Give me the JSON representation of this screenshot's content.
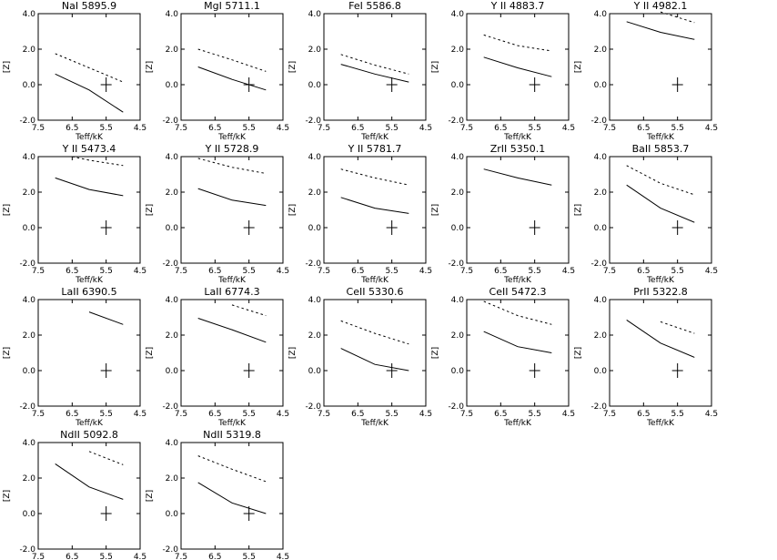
{
  "chart_data": [
    {
      "type": "line",
      "title": "NaI 5895.9",
      "xlabel": "Teff/kK",
      "ylabel": "[Z]",
      "x_ticks": [
        "7.5",
        "6.5",
        "5.5",
        "4.5"
      ],
      "y_ticks": [
        "4.0",
        "2.0",
        "0.0",
        "-2.0"
      ],
      "xlim": [
        7.5,
        4.5
      ],
      "ylim": [
        -2.0,
        4.0
      ],
      "series": [
        {
          "style": "solid",
          "x": [
            7.0,
            6.0,
            5.0
          ],
          "y": [
            0.6,
            -0.3,
            -1.55
          ]
        },
        {
          "style": "dotted",
          "x": [
            7.0,
            6.0,
            5.0
          ],
          "y": [
            1.75,
            0.95,
            0.15
          ]
        }
      ],
      "point": {
        "x": 5.5,
        "y": 0.0
      }
    },
    {
      "type": "line",
      "title": "MgI 5711.1",
      "xlabel": "Teff/kK",
      "ylabel": "[Z]",
      "x_ticks": [
        "7.5",
        "6.5",
        "5.5",
        "4.5"
      ],
      "y_ticks": [
        "4.0",
        "2.0",
        "0.0",
        "-2.0"
      ],
      "xlim": [
        7.5,
        4.5
      ],
      "ylim": [
        -2.0,
        4.0
      ],
      "series": [
        {
          "style": "solid",
          "x": [
            7.0,
            6.0,
            5.0
          ],
          "y": [
            1.0,
            0.3,
            -0.3
          ]
        },
        {
          "style": "dotted",
          "x": [
            7.0,
            6.0,
            5.0
          ],
          "y": [
            2.0,
            1.4,
            0.75
          ]
        }
      ],
      "point": {
        "x": 5.5,
        "y": 0.0
      }
    },
    {
      "type": "line",
      "title": "FeI 5586.8",
      "xlabel": "Teff/kK",
      "ylabel": "[Z]",
      "x_ticks": [
        "7.5",
        "6.5",
        "5.5",
        "4.5"
      ],
      "y_ticks": [
        "4.0",
        "2.0",
        "0.0",
        "-2.0"
      ],
      "xlim": [
        7.5,
        4.5
      ],
      "ylim": [
        -2.0,
        4.0
      ],
      "series": [
        {
          "style": "solid",
          "x": [
            7.0,
            6.0,
            5.0
          ],
          "y": [
            1.15,
            0.6,
            0.15
          ]
        },
        {
          "style": "dotted",
          "x": [
            7.0,
            6.0,
            5.0
          ],
          "y": [
            1.7,
            1.1,
            0.6
          ]
        }
      ],
      "point": {
        "x": 5.5,
        "y": 0.0
      }
    },
    {
      "type": "line",
      "title": "Y II 4883.7",
      "xlabel": "Teff/kK",
      "ylabel": "[Z]",
      "x_ticks": [
        "7.5",
        "6.5",
        "5.5",
        "4.5"
      ],
      "y_ticks": [
        "4.0",
        "2.0",
        "0.0",
        "-2.0"
      ],
      "xlim": [
        7.5,
        4.5
      ],
      "ylim": [
        -2.0,
        4.0
      ],
      "series": [
        {
          "style": "solid",
          "x": [
            7.0,
            6.0,
            5.0
          ],
          "y": [
            1.55,
            0.95,
            0.45
          ]
        },
        {
          "style": "dotted",
          "x": [
            7.0,
            6.0,
            5.0
          ],
          "y": [
            2.8,
            2.2,
            1.9
          ]
        }
      ],
      "point": {
        "x": 5.5,
        "y": 0.0
      }
    },
    {
      "type": "line",
      "title": "Y II 4982.1",
      "xlabel": "Teff/kK",
      "ylabel": "[Z]",
      "x_ticks": [
        "7.5",
        "6.5",
        "5.5",
        "4.5"
      ],
      "y_ticks": [
        "4.0",
        "2.0",
        "0.0",
        "-2.0"
      ],
      "xlim": [
        7.5,
        4.5
      ],
      "ylim": [
        -2.0,
        4.0
      ],
      "series": [
        {
          "style": "solid",
          "x": [
            7.0,
            6.0,
            5.0
          ],
          "y": [
            3.55,
            2.95,
            2.55
          ]
        },
        {
          "style": "dotted",
          "x": [
            6.0,
            5.0
          ],
          "y": [
            4.1,
            3.5
          ]
        }
      ],
      "point": {
        "x": 5.5,
        "y": 0.0
      }
    },
    {
      "type": "line",
      "title": "Y II 5473.4",
      "xlabel": "Teff/kK",
      "ylabel": "[Z]",
      "x_ticks": [
        "7.5",
        "6.5",
        "5.5",
        "4.5"
      ],
      "y_ticks": [
        "4.0",
        "2.0",
        "0.0",
        "-2.0"
      ],
      "xlim": [
        7.5,
        4.5
      ],
      "ylim": [
        -2.0,
        4.0
      ],
      "series": [
        {
          "style": "solid",
          "x": [
            7.0,
            6.0,
            5.0
          ],
          "y": [
            2.8,
            2.15,
            1.8
          ]
        },
        {
          "style": "dotted",
          "x": [
            6.5,
            6.0,
            5.0
          ],
          "y": [
            4.0,
            3.8,
            3.5
          ]
        }
      ],
      "point": {
        "x": 5.5,
        "y": 0.0
      }
    },
    {
      "type": "line",
      "title": "Y II 5728.9",
      "xlabel": "Teff/kK",
      "ylabel": "[Z]",
      "x_ticks": [
        "7.5",
        "6.5",
        "5.5",
        "4.5"
      ],
      "y_ticks": [
        "4.0",
        "2.0",
        "0.0",
        "-2.0"
      ],
      "xlim": [
        7.5,
        4.5
      ],
      "ylim": [
        -2.0,
        4.0
      ],
      "series": [
        {
          "style": "solid",
          "x": [
            7.0,
            6.0,
            5.0
          ],
          "y": [
            2.2,
            1.55,
            1.25
          ]
        },
        {
          "style": "dotted",
          "x": [
            7.0,
            6.0,
            5.0
          ],
          "y": [
            3.9,
            3.4,
            3.05
          ]
        }
      ],
      "point": {
        "x": 5.5,
        "y": 0.0
      }
    },
    {
      "type": "line",
      "title": "Y II 5781.7",
      "xlabel": "Teff/kK",
      "ylabel": "[Z]",
      "x_ticks": [
        "7.5",
        "6.5",
        "5.5",
        "4.5"
      ],
      "y_ticks": [
        "4.0",
        "2.0",
        "0.0",
        "-2.0"
      ],
      "xlim": [
        7.5,
        4.5
      ],
      "ylim": [
        -2.0,
        4.0
      ],
      "series": [
        {
          "style": "solid",
          "x": [
            7.0,
            6.0,
            5.0
          ],
          "y": [
            1.7,
            1.1,
            0.8
          ]
        },
        {
          "style": "dotted",
          "x": [
            7.0,
            6.0,
            5.0
          ],
          "y": [
            3.3,
            2.8,
            2.4
          ]
        }
      ],
      "point": {
        "x": 5.5,
        "y": 0.0
      }
    },
    {
      "type": "line",
      "title": "ZrII 5350.1",
      "xlabel": "Teff/kK",
      "ylabel": "[Z]",
      "x_ticks": [
        "7.5",
        "6.5",
        "5.5",
        "4.5"
      ],
      "y_ticks": [
        "4.0",
        "2.0",
        "0.0",
        "-2.0"
      ],
      "xlim": [
        7.5,
        4.5
      ],
      "ylim": [
        -2.0,
        4.0
      ],
      "series": [
        {
          "style": "solid",
          "x": [
            7.0,
            6.0,
            5.0
          ],
          "y": [
            3.3,
            2.8,
            2.4
          ]
        }
      ],
      "point": {
        "x": 5.5,
        "y": 0.0
      }
    },
    {
      "type": "line",
      "title": "BaII 5853.7",
      "xlabel": "Teff/kK",
      "ylabel": "[Z]",
      "x_ticks": [
        "7.5",
        "6.5",
        "5.5",
        "4.5"
      ],
      "y_ticks": [
        "4.0",
        "2.0",
        "0.0",
        "-2.0"
      ],
      "xlim": [
        7.5,
        4.5
      ],
      "ylim": [
        -2.0,
        4.0
      ],
      "series": [
        {
          "style": "solid",
          "x": [
            7.0,
            6.0,
            5.0
          ],
          "y": [
            2.4,
            1.1,
            0.3
          ]
        },
        {
          "style": "dotted",
          "x": [
            7.0,
            6.0,
            5.0
          ],
          "y": [
            3.5,
            2.5,
            1.85
          ]
        }
      ],
      "point": {
        "x": 5.5,
        "y": 0.0
      }
    },
    {
      "type": "line",
      "title": "LaII 6390.5",
      "xlabel": "Teff/kK",
      "ylabel": "[Z]",
      "x_ticks": [
        "7.5",
        "6.5",
        "5.5",
        "4.5"
      ],
      "y_ticks": [
        "4.0",
        "2.0",
        "0.0",
        "-2.0"
      ],
      "xlim": [
        7.5,
        4.5
      ],
      "ylim": [
        -2.0,
        4.0
      ],
      "series": [
        {
          "style": "solid",
          "x": [
            6.0,
            5.0
          ],
          "y": [
            3.3,
            2.6
          ]
        }
      ],
      "point": {
        "x": 5.5,
        "y": 0.0
      }
    },
    {
      "type": "line",
      "title": "LaII 6774.3",
      "xlabel": "Teff/kK",
      "ylabel": "[Z]",
      "x_ticks": [
        "7.5",
        "6.5",
        "5.5",
        "4.5"
      ],
      "y_ticks": [
        "4.0",
        "2.0",
        "0.0",
        "-2.0"
      ],
      "xlim": [
        7.5,
        4.5
      ],
      "ylim": [
        -2.0,
        4.0
      ],
      "series": [
        {
          "style": "solid",
          "x": [
            7.0,
            6.0,
            5.0
          ],
          "y": [
            2.95,
            2.3,
            1.6
          ]
        },
        {
          "style": "dotted",
          "x": [
            6.0,
            5.0
          ],
          "y": [
            3.7,
            3.1
          ]
        }
      ],
      "point": {
        "x": 5.5,
        "y": 0.0
      }
    },
    {
      "type": "line",
      "title": "CeII 5330.6",
      "xlabel": "Teff/kK",
      "ylabel": "[Z]",
      "x_ticks": [
        "7.5",
        "6.5",
        "5.5",
        "4.5"
      ],
      "y_ticks": [
        "4.0",
        "2.0",
        "0.0",
        "-2.0"
      ],
      "xlim": [
        7.5,
        4.5
      ],
      "ylim": [
        -2.0,
        4.0
      ],
      "series": [
        {
          "style": "solid",
          "x": [
            7.0,
            6.0,
            5.0
          ],
          "y": [
            1.25,
            0.35,
            0.0
          ]
        },
        {
          "style": "dotted",
          "x": [
            7.0,
            6.0,
            5.0
          ],
          "y": [
            2.8,
            2.1,
            1.5
          ]
        }
      ],
      "point": {
        "x": 5.5,
        "y": 0.0
      }
    },
    {
      "type": "line",
      "title": "CeII 5472.3",
      "xlabel": "Teff/kK",
      "ylabel": "[Z]",
      "x_ticks": [
        "7.5",
        "6.5",
        "5.5",
        "4.5"
      ],
      "y_ticks": [
        "4.0",
        "2.0",
        "0.0",
        "-2.0"
      ],
      "xlim": [
        7.5,
        4.5
      ],
      "ylim": [
        -2.0,
        4.0
      ],
      "series": [
        {
          "style": "solid",
          "x": [
            7.0,
            6.0,
            5.0
          ],
          "y": [
            2.2,
            1.35,
            1.0
          ]
        },
        {
          "style": "dotted",
          "x": [
            7.0,
            6.0,
            5.0
          ],
          "y": [
            3.9,
            3.1,
            2.6
          ]
        }
      ],
      "point": {
        "x": 5.5,
        "y": 0.0
      }
    },
    {
      "type": "line",
      "title": "PrII 5322.8",
      "xlabel": "Teff/kK",
      "ylabel": "[Z]",
      "x_ticks": [
        "7.5",
        "6.5",
        "5.5",
        "4.5"
      ],
      "y_ticks": [
        "4.0",
        "2.0",
        "0.0",
        "-2.0"
      ],
      "xlim": [
        7.5,
        4.5
      ],
      "ylim": [
        -2.0,
        4.0
      ],
      "series": [
        {
          "style": "solid",
          "x": [
            7.0,
            6.0,
            5.0
          ],
          "y": [
            2.85,
            1.55,
            0.75
          ]
        },
        {
          "style": "dotted",
          "x": [
            6.0,
            5.0
          ],
          "y": [
            2.75,
            2.1
          ]
        }
      ],
      "point": {
        "x": 5.5,
        "y": 0.0
      }
    },
    {
      "type": "line",
      "title": "NdII 5092.8",
      "xlabel": "Teff/kK",
      "ylabel": "[Z]",
      "x_ticks": [
        "7.5",
        "6.5",
        "5.5",
        "4.5"
      ],
      "y_ticks": [
        "4.0",
        "2.0",
        "0.0",
        "-2.0"
      ],
      "xlim": [
        7.5,
        4.5
      ],
      "ylim": [
        -2.0,
        4.0
      ],
      "series": [
        {
          "style": "solid",
          "x": [
            7.0,
            6.0,
            5.0
          ],
          "y": [
            2.8,
            1.5,
            0.8
          ]
        },
        {
          "style": "dotted",
          "x": [
            6.0,
            5.0
          ],
          "y": [
            3.5,
            2.75
          ]
        }
      ],
      "point": {
        "x": 5.5,
        "y": 0.0
      }
    },
    {
      "type": "line",
      "title": "NdII 5319.8",
      "xlabel": "Teff/kK",
      "ylabel": "[Z]",
      "x_ticks": [
        "7.5",
        "6.5",
        "5.5",
        "4.5"
      ],
      "y_ticks": [
        "4.0",
        "2.0",
        "0.0",
        "-2.0"
      ],
      "xlim": [
        7.5,
        4.5
      ],
      "ylim": [
        -2.0,
        4.0
      ],
      "series": [
        {
          "style": "solid",
          "x": [
            7.0,
            6.0,
            5.0
          ],
          "y": [
            1.75,
            0.6,
            0.0
          ]
        },
        {
          "style": "dotted",
          "x": [
            7.0,
            6.0,
            5.0
          ],
          "y": [
            3.25,
            2.5,
            1.8
          ]
        }
      ],
      "point": {
        "x": 5.5,
        "y": 0.0
      }
    }
  ]
}
